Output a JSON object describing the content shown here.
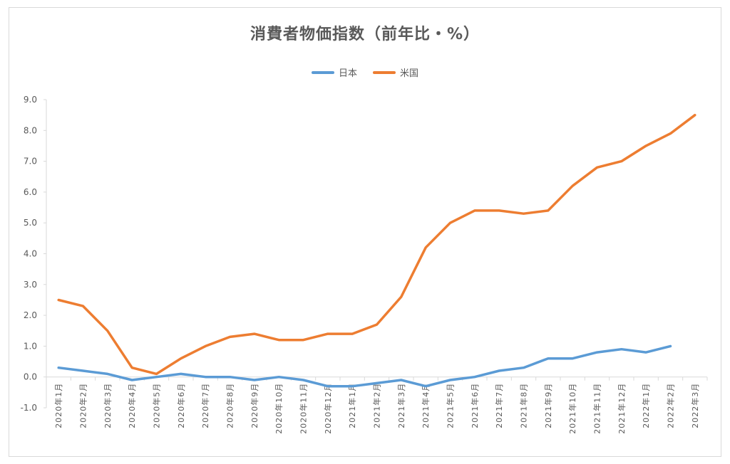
{
  "chart_data": {
    "type": "line",
    "title": "消費者物価指数（前年比・%）",
    "xlabel": "",
    "ylabel": "",
    "ylim": [
      -1.0,
      9.0
    ],
    "yticks": [
      -1.0,
      0.0,
      1.0,
      2.0,
      3.0,
      4.0,
      5.0,
      6.0,
      7.0,
      8.0,
      9.0
    ],
    "ytick_labels": [
      "-1.0",
      "0.0",
      "1.0",
      "2.0",
      "3.0",
      "4.0",
      "5.0",
      "6.0",
      "7.0",
      "8.0",
      "9.0"
    ],
    "legend_position": "top-center",
    "grid": false,
    "categories": [
      "2020年1月",
      "2020年2月",
      "2020年3月",
      "2020年4月",
      "2020年5月",
      "2020年6月",
      "2020年7月",
      "2020年8月",
      "2020年9月",
      "2020年10月",
      "2020年11月",
      "2020年12月",
      "2021年1月",
      "2021年2月",
      "2021年3月",
      "2021年4月",
      "2021年5月",
      "2021年6月",
      "2021年7月",
      "2021年8月",
      "2021年9月",
      "2021年10月",
      "2021年11月",
      "2021年12月",
      "2022年1月",
      "2022年2月",
      "2022年3月"
    ],
    "series": [
      {
        "name": "日本",
        "color": "#5b9bd5",
        "values": [
          0.3,
          0.2,
          0.1,
          -0.1,
          0.0,
          0.1,
          0.0,
          0.0,
          -0.1,
          0.0,
          -0.1,
          -0.3,
          -0.3,
          -0.2,
          -0.1,
          -0.3,
          -0.1,
          0.0,
          0.2,
          0.3,
          0.6,
          0.6,
          0.8,
          0.9,
          0.8,
          1.0,
          null
        ]
      },
      {
        "name": "米国",
        "color": "#ed7d31",
        "values": [
          2.5,
          2.3,
          1.5,
          0.3,
          0.1,
          0.6,
          1.0,
          1.3,
          1.4,
          1.2,
          1.2,
          1.4,
          1.4,
          1.7,
          2.6,
          4.2,
          5.0,
          5.4,
          5.4,
          5.3,
          5.4,
          6.2,
          6.8,
          7.0,
          7.5,
          7.9,
          8.5
        ]
      }
    ]
  }
}
